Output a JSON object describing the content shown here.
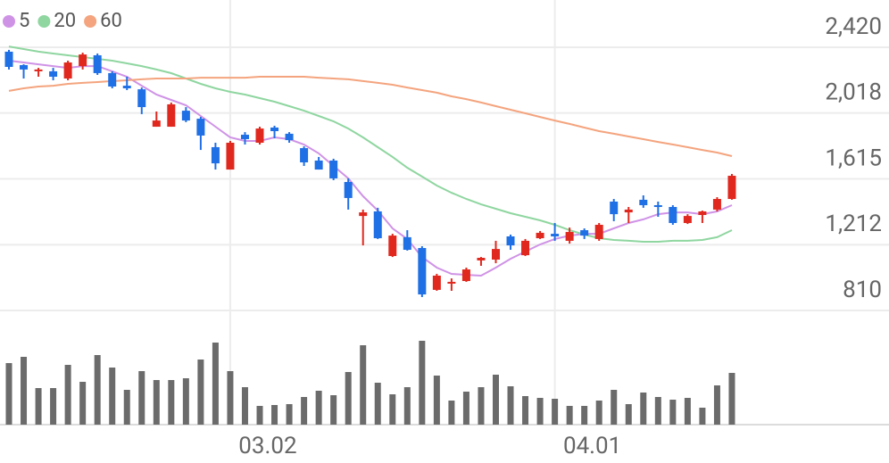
{
  "chart_data": {
    "type": "candlestick",
    "categories": [
      null,
      null,
      null,
      null,
      null,
      null,
      null,
      null,
      null,
      null,
      null,
      null,
      null,
      null,
      null,
      "03.02",
      null,
      null,
      null,
      null,
      null,
      null,
      null,
      null,
      null,
      null,
      null,
      null,
      null,
      null,
      null,
      null,
      null,
      null,
      null,
      null,
      null,
      "04.01",
      null,
      null,
      null,
      null,
      null,
      null,
      null,
      null,
      null,
      null,
      null,
      null
    ],
    "open": [
      2393,
      2311,
      2273,
      2273,
      2229,
      2305,
      2371,
      2262,
      2185,
      2163,
      1934,
      1934,
      2032,
      1983,
      1809,
      1672,
      1885,
      1836,
      1929,
      1891,
      1803,
      1727,
      1727,
      1596,
      1388,
      1416,
      1143,
      1258,
      1192,
      936,
      974,
      990,
      1116,
      1121,
      1263,
      1148,
      1252,
      1279,
      1236,
      1301,
      1247,
      1476,
      1410,
      1487,
      1454,
      1443,
      1345,
      1394,
      1427,
      1492
    ],
    "high": [
      2404,
      2316,
      2294,
      2294,
      2338,
      2387,
      2382,
      2273,
      2240,
      2174,
      2027,
      2082,
      2054,
      1994,
      1836,
      1847,
      1901,
      1934,
      1940,
      1901,
      1814,
      1749,
      1738,
      1618,
      1427,
      1438,
      1279,
      1301,
      1203,
      1034,
      1006,
      1072,
      1137,
      1236,
      1274,
      1247,
      1296,
      1345,
      1317,
      1312,
      1345,
      1492,
      1443,
      1514,
      1476,
      1454,
      1399,
      1421,
      1503,
      1645
    ],
    "low": [
      2284,
      2229,
      2240,
      2218,
      2218,
      2284,
      2251,
      2169,
      2158,
      2011,
      1934,
      1934,
      1962,
      1792,
      1672,
      1672,
      1825,
      1825,
      1863,
      1836,
      1694,
      1672,
      1607,
      1427,
      1208,
      1247,
      1137,
      1176,
      892,
      930,
      930,
      985,
      1083,
      1099,
      1181,
      1143,
      1247,
      1236,
      1219,
      1247,
      1236,
      1356,
      1345,
      1438,
      1383,
      1334,
      1339,
      1345,
      1416,
      1487
    ],
    "close": [
      2300,
      2284,
      2284,
      2240,
      2327,
      2376,
      2262,
      2180,
      2169,
      2054,
      1972,
      2071,
      1972,
      1880,
      1710,
      1836,
      1858,
      1923,
      1907,
      1852,
      1716,
      1672,
      1618,
      1498,
      1410,
      1252,
      1268,
      1181,
      908,
      1023,
      985,
      1061,
      1132,
      1186,
      1208,
      1236,
      1285,
      1263,
      1290,
      1268,
      1334,
      1399,
      1427,
      1454,
      1443,
      1345,
      1388,
      1416,
      1492,
      1634
    ],
    "up_color": "#e0281e",
    "down_color": "#1f6fe5",
    "series": [
      {
        "name": "5",
        "color": "#cf93e6",
        "values": [
          2338,
          2327,
          2316,
          2305,
          2294,
          2305,
          2305,
          2273,
          2240,
          2185,
          2131,
          2098,
          2065,
          2000,
          1934,
          1869,
          1847,
          1847,
          1869,
          1858,
          1825,
          1771,
          1694,
          1618,
          1509,
          1421,
          1312,
          1247,
          1137,
          1072,
          1034,
          1028,
          1023,
          1072,
          1126,
          1170,
          1214,
          1247,
          1268,
          1279,
          1279,
          1312,
          1345,
          1367,
          1399,
          1410,
          1410,
          1399,
          1416,
          1454
        ]
      },
      {
        "name": "20",
        "color": "#8fd6a0",
        "values": [
          2425,
          2409,
          2393,
          2382,
          2371,
          2360,
          2349,
          2338,
          2322,
          2305,
          2284,
          2262,
          2229,
          2196,
          2169,
          2147,
          2131,
          2109,
          2087,
          2060,
          2032,
          2000,
          1967,
          1923,
          1869,
          1809,
          1749,
          1683,
          1629,
          1574,
          1530,
          1492,
          1459,
          1432,
          1405,
          1383,
          1361,
          1334,
          1301,
          1274,
          1252,
          1241,
          1236,
          1230,
          1230,
          1236,
          1236,
          1241,
          1258,
          1301
        ]
      },
      {
        "name": "60",
        "color": "#f4a47e",
        "values": [
          2153,
          2169,
          2180,
          2185,
          2196,
          2202,
          2207,
          2213,
          2218,
          2224,
          2229,
          2229,
          2229,
          2234,
          2234,
          2234,
          2234,
          2240,
          2240,
          2240,
          2240,
          2234,
          2229,
          2224,
          2213,
          2202,
          2191,
          2174,
          2158,
          2142,
          2120,
          2103,
          2082,
          2060,
          2038,
          2016,
          1994,
          1972,
          1951,
          1929,
          1907,
          1891,
          1874,
          1858,
          1841,
          1825,
          1809,
          1792,
          1776,
          1754
        ]
      }
    ],
    "volume": {
      "color": "#6b6b6b",
      "vlim": [
        0,
        100
      ],
      "values": [
        69,
        76,
        41,
        41,
        67,
        48,
        78,
        64,
        39,
        60,
        50,
        50,
        52,
        73,
        92,
        60,
        42,
        21,
        22,
        23,
        31,
        38,
        33,
        59,
        89,
        47,
        34,
        42,
        94,
        55,
        27,
        37,
        42,
        56,
        43,
        32,
        30,
        29,
        21,
        21,
        27,
        39,
        23,
        36,
        31,
        28,
        30,
        19,
        44,
        58
      ]
    },
    "ylim": [
      810,
      2420
    ],
    "yticks": [
      {
        "value": 2420,
        "label": "2,420"
      },
      {
        "value": 2018,
        "label": "2,018"
      },
      {
        "value": 1615,
        "label": "1,615"
      },
      {
        "value": 1212,
        "label": "1,212"
      },
      810
    ],
    "grid": true
  }
}
